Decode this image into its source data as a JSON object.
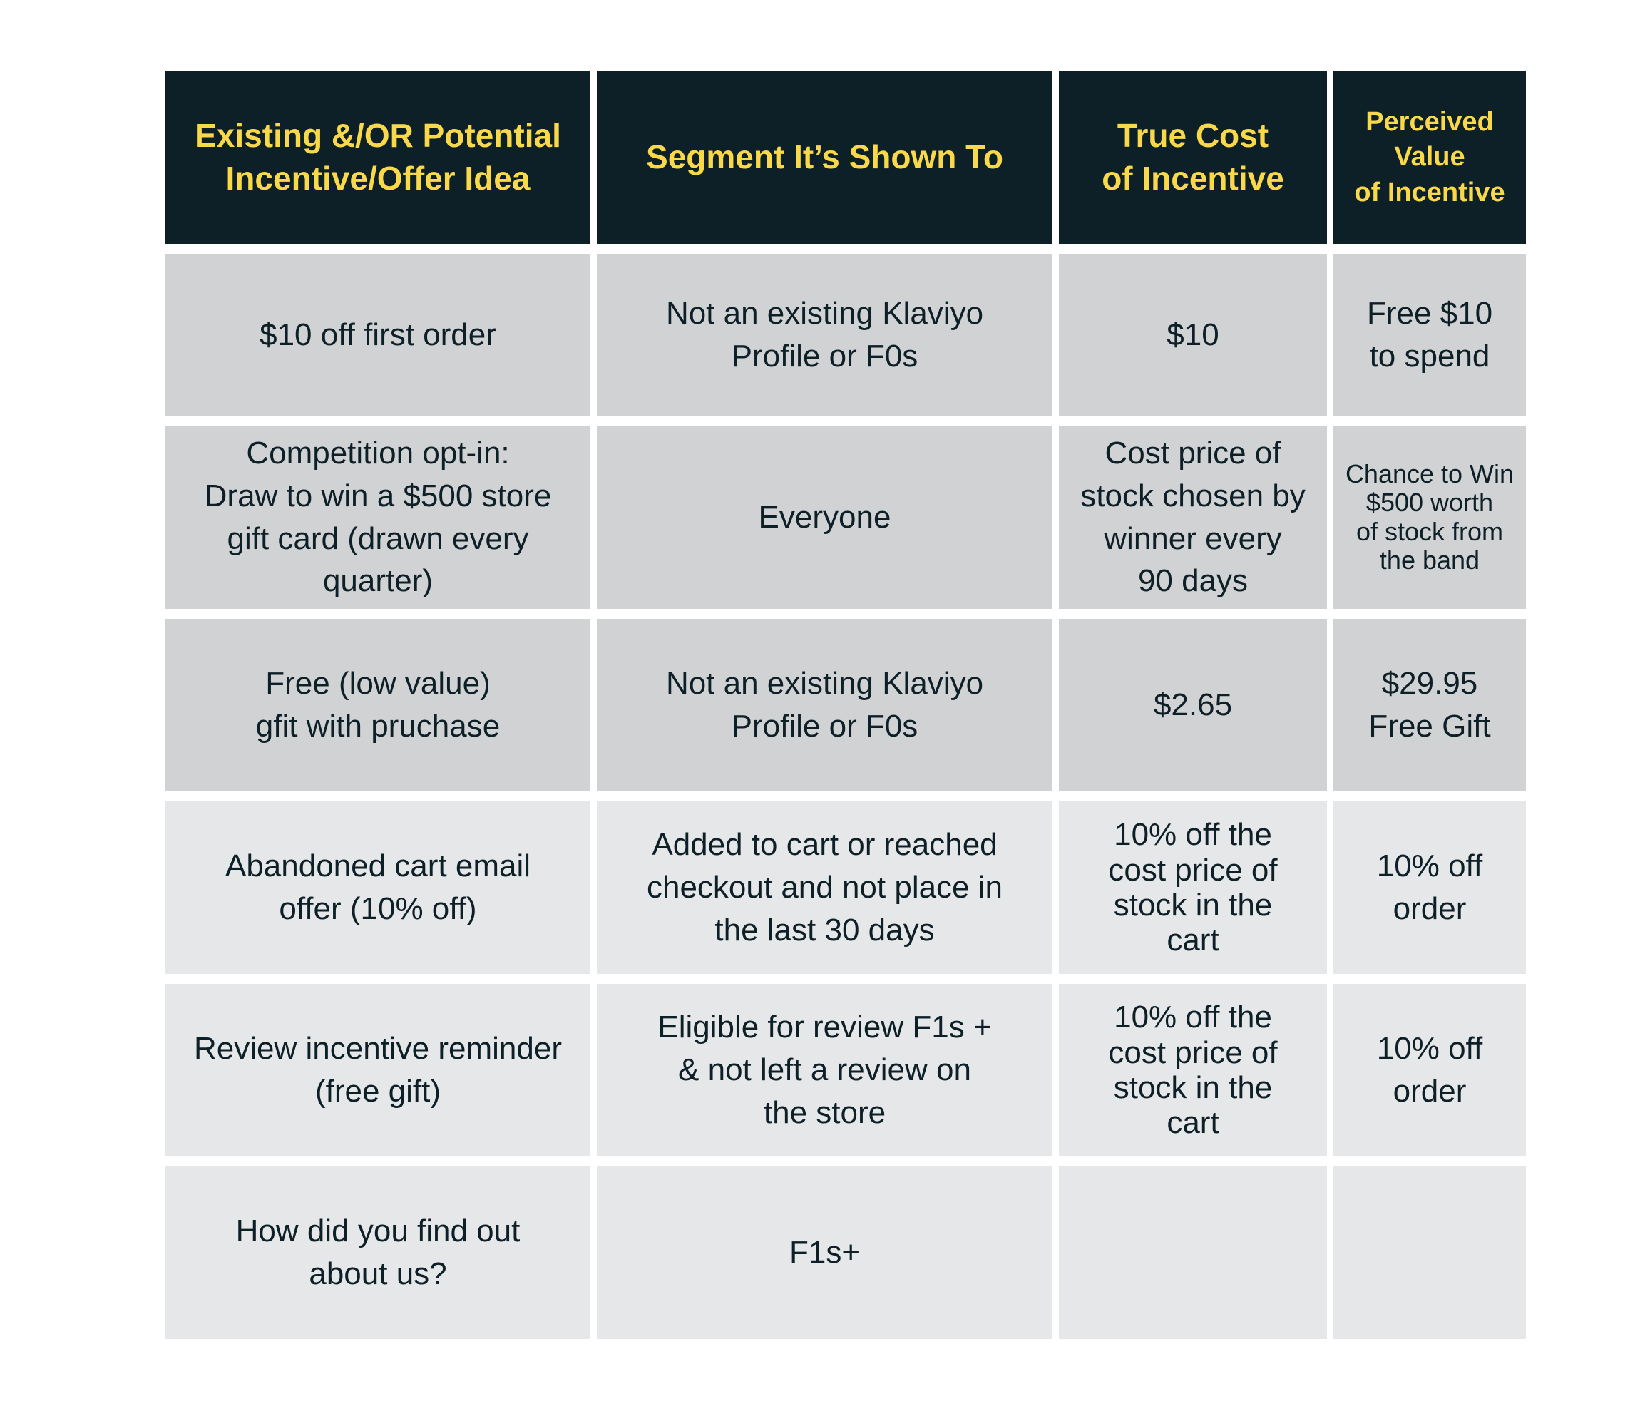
{
  "table": {
    "headers": [
      "Existing &/OR Potential\nIncentive/Offer Idea",
      "Segment It’s Shown To",
      "True Cost\nof Incentive",
      "Perceived\nValue\nof Incentive"
    ],
    "rows": [
      [
        "$10 off first order",
        "Not an existing Klaviyo\nProfile or F0s",
        "$10",
        "Free $10\nto spend"
      ],
      [
        "Competition opt-in:\nDraw to win a $500 store\ngift card (drawn every\nquarter)",
        "Everyone",
        "Cost price of\nstock chosen by\nwinner every\n90 days",
        "Chance to Win\n$500 worth\nof stock from\nthe band"
      ],
      [
        "Free (low value)\ngfit with pruchase",
        "Not an existing Klaviyo\nProfile or F0s",
        "$2.65",
        "$29.95\nFree Gift"
      ],
      [
        "Abandoned cart email\noffer (10% off)",
        "Added to cart or reached\ncheckout  and not place in\nthe last 30 days",
        "10% off the\ncost price of\nstock in the\ncart",
        "10% off\norder"
      ],
      [
        "Review incentive reminder\n(free gift)",
        "Eligible for review F1s +\n& not left a review on\nthe store",
        "10% off the\ncost price of\nstock in the\ncart",
        "10% off\norder"
      ],
      [
        "How did you find out\nabout us?",
        "F1s+",
        "",
        ""
      ]
    ]
  },
  "colors": {
    "header_bg": "#0e2027",
    "header_text": "#f9d84a",
    "row_dark": "#d1d2d4",
    "row_light": "#e6e7e8",
    "body_text": "#0e2027"
  }
}
